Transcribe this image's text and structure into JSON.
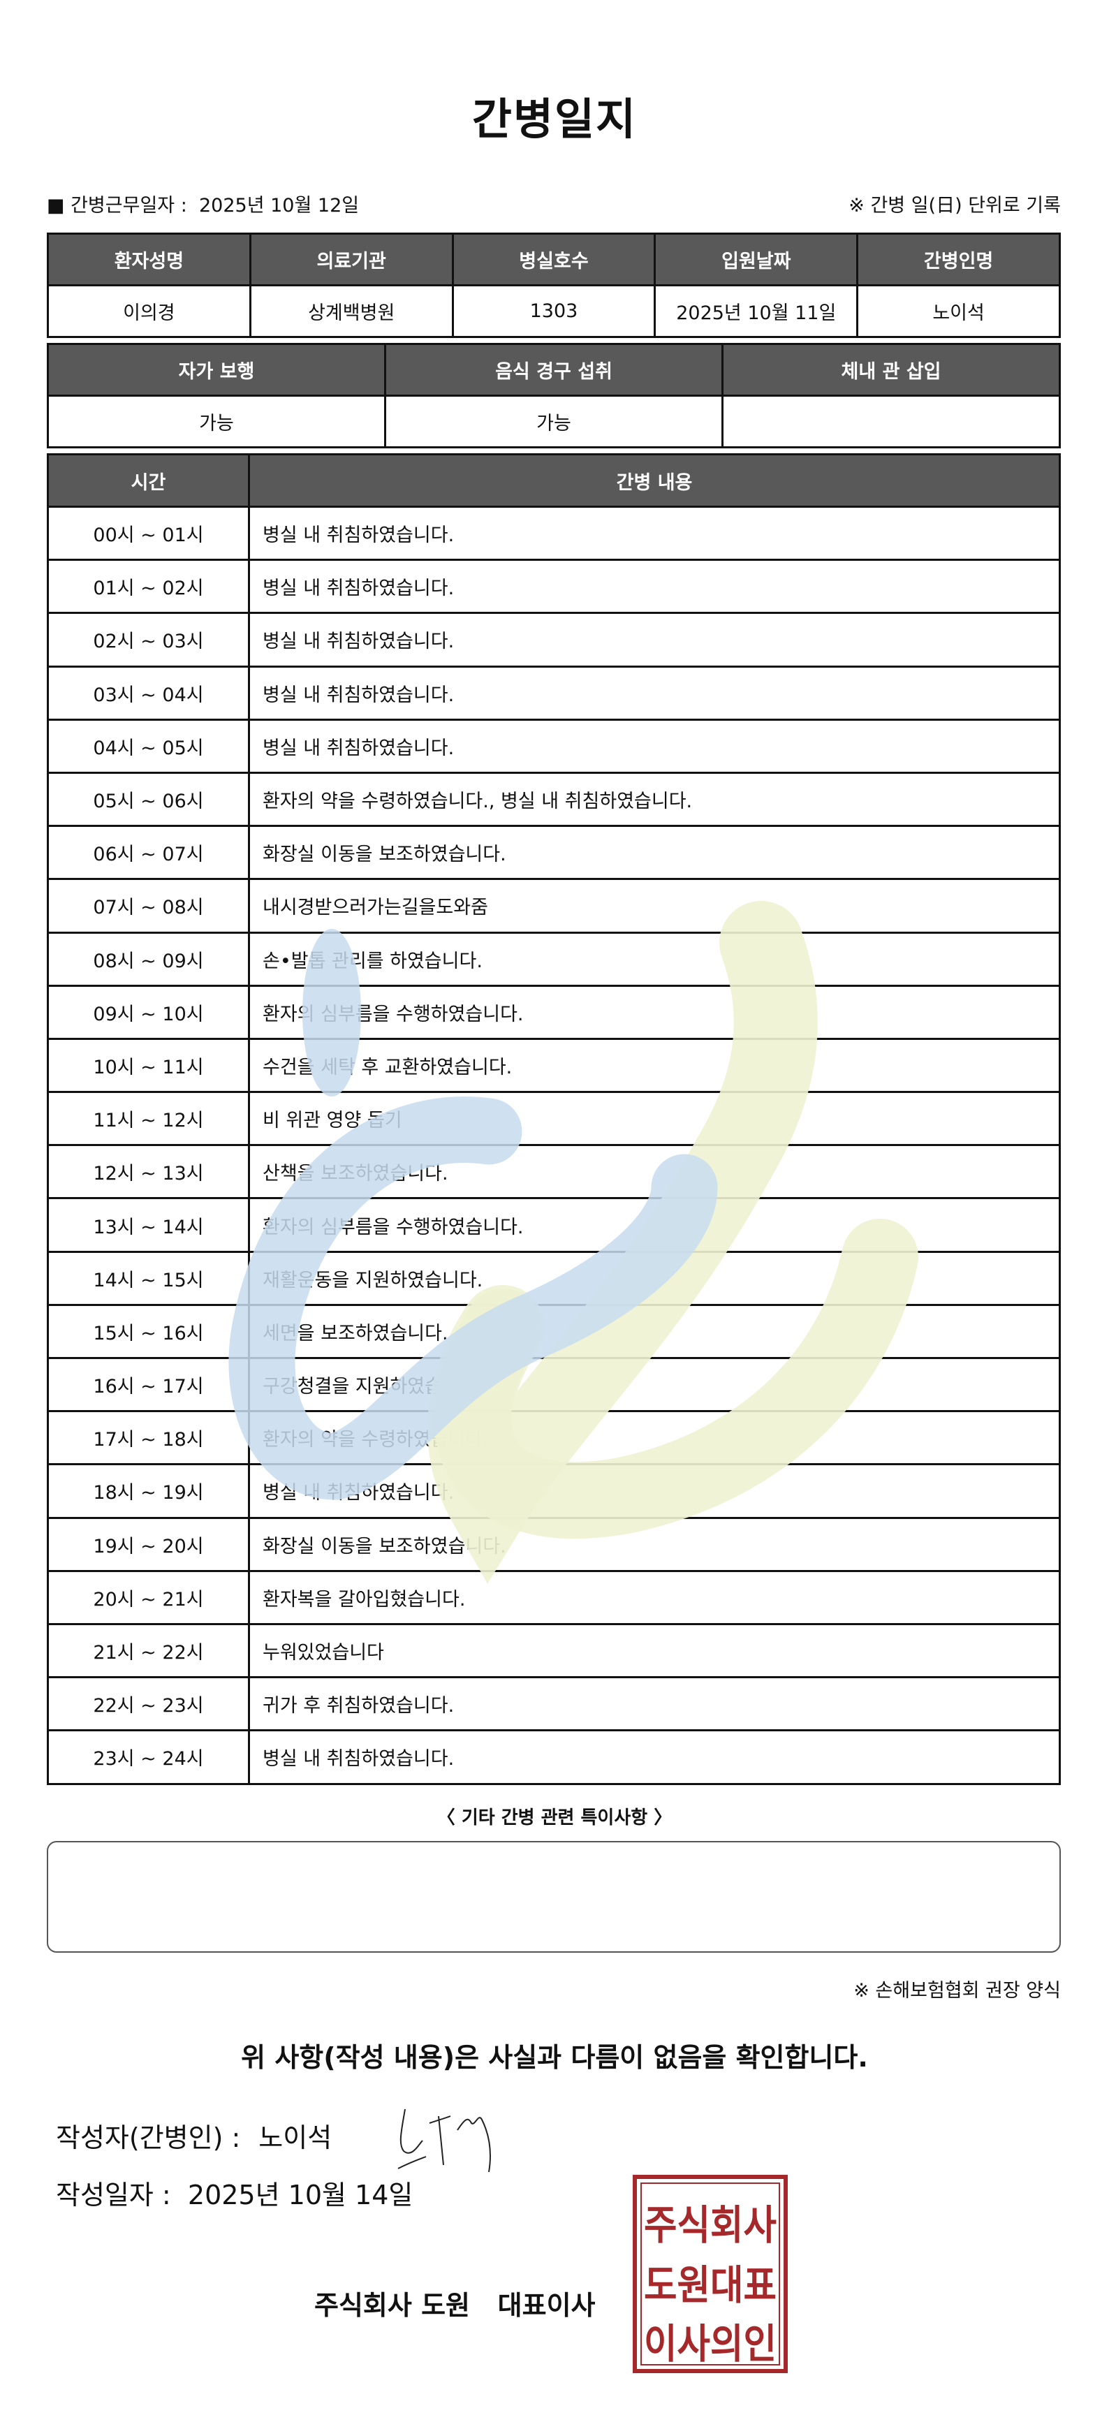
{
  "title": "간병일지",
  "info": {
    "work_date_label": "■ 간병근무일자 :",
    "work_date": "2025년 10월 12일",
    "record_unit_note": "※ 간병 일(日) 단위로 기록"
  },
  "patient_table": {
    "headers": [
      "환자성명",
      "의료기관",
      "병실호수",
      "입원날짜",
      "간병인명"
    ],
    "values": [
      "이의경",
      "상계백병원",
      "1303",
      "2025년 10월 11일",
      "노이석"
    ]
  },
  "status_table": {
    "headers": [
      "자가 보행",
      "음식 경구 섭취",
      "체내 관 삽입"
    ],
    "values": [
      "가능",
      "가능",
      ""
    ]
  },
  "log_table": {
    "headers": [
      "시간",
      "간병 내용"
    ],
    "rows": [
      {
        "time": "00시 ~ 01시",
        "content": "병실 내 취침하였습니다."
      },
      {
        "time": "01시 ~ 02시",
        "content": "병실 내 취침하였습니다."
      },
      {
        "time": "02시 ~ 03시",
        "content": "병실 내 취침하였습니다."
      },
      {
        "time": "03시 ~ 04시",
        "content": "병실 내 취침하였습니다."
      },
      {
        "time": "04시 ~ 05시",
        "content": "병실 내 취침하였습니다."
      },
      {
        "time": "05시 ~ 06시",
        "content": "환자의 약을 수령하였습니다., 병실 내 취침하였습니다."
      },
      {
        "time": "06시 ~ 07시",
        "content": "화장실 이동을 보조하였습니다."
      },
      {
        "time": "07시 ~ 08시",
        "content": "내시경받으러가는길을도와줌"
      },
      {
        "time": "08시 ~ 09시",
        "content": "손•발톱 관리를 하였습니다."
      },
      {
        "time": "09시 ~ 10시",
        "content": "환자의 심부름을 수행하였습니다."
      },
      {
        "time": "10시 ~ 11시",
        "content": "수건을 세탁 후 교환하였습니다."
      },
      {
        "time": "11시 ~ 12시",
        "content": "비 위관 영양 돕기"
      },
      {
        "time": "12시 ~ 13시",
        "content": "산책을 보조하였습니다."
      },
      {
        "time": "13시 ~ 14시",
        "content": "환자의 심부름을 수행하였습니다."
      },
      {
        "time": "14시 ~ 15시",
        "content": "재활운동을 지원하였습니다."
      },
      {
        "time": "15시 ~ 16시",
        "content": "세면을 보조하였습니다."
      },
      {
        "time": "16시 ~ 17시",
        "content": "구강청결을 지원하였습니다."
      },
      {
        "time": "17시 ~ 18시",
        "content": "환자의 약을 수령하였습니다."
      },
      {
        "time": "18시 ~ 19시",
        "content": "병실 내 취침하였습니다."
      },
      {
        "time": "19시 ~ 20시",
        "content": "화장실 이동을 보조하였습니다."
      },
      {
        "time": "20시 ~ 21시",
        "content": "환자복을 갈아입혔습니다."
      },
      {
        "time": "21시 ~ 22시",
        "content": "누워있었습니다"
      },
      {
        "time": "22시 ~ 23시",
        "content": "귀가 후 취침하였습니다."
      },
      {
        "time": "23시 ~ 24시",
        "content": "병실 내 취침하였습니다."
      }
    ]
  },
  "notes": {
    "label": "〈 기타 간병 관련 특이사항 〉",
    "content": ""
  },
  "notice": "※ 손해보험협회 권장 양식",
  "confirmation": "위 사항(작성 내용)은 사실과 다름이 없음을 확인합니다.",
  "writer": {
    "label": "작성자(간병인) :",
    "name": "노이석"
  },
  "written_date": {
    "label": "작성일자 :",
    "value": "2025년 10월 14일"
  },
  "company": "주식회사 도원   대표이사",
  "stamp": {
    "text": [
      "주식회사",
      "도원대표",
      "이사의인"
    ],
    "color": "#a5282b"
  },
  "colors": {
    "header_bg": "#595959",
    "watermark_blue": "#c7dcee",
    "watermark_green": "#eef2d2"
  }
}
